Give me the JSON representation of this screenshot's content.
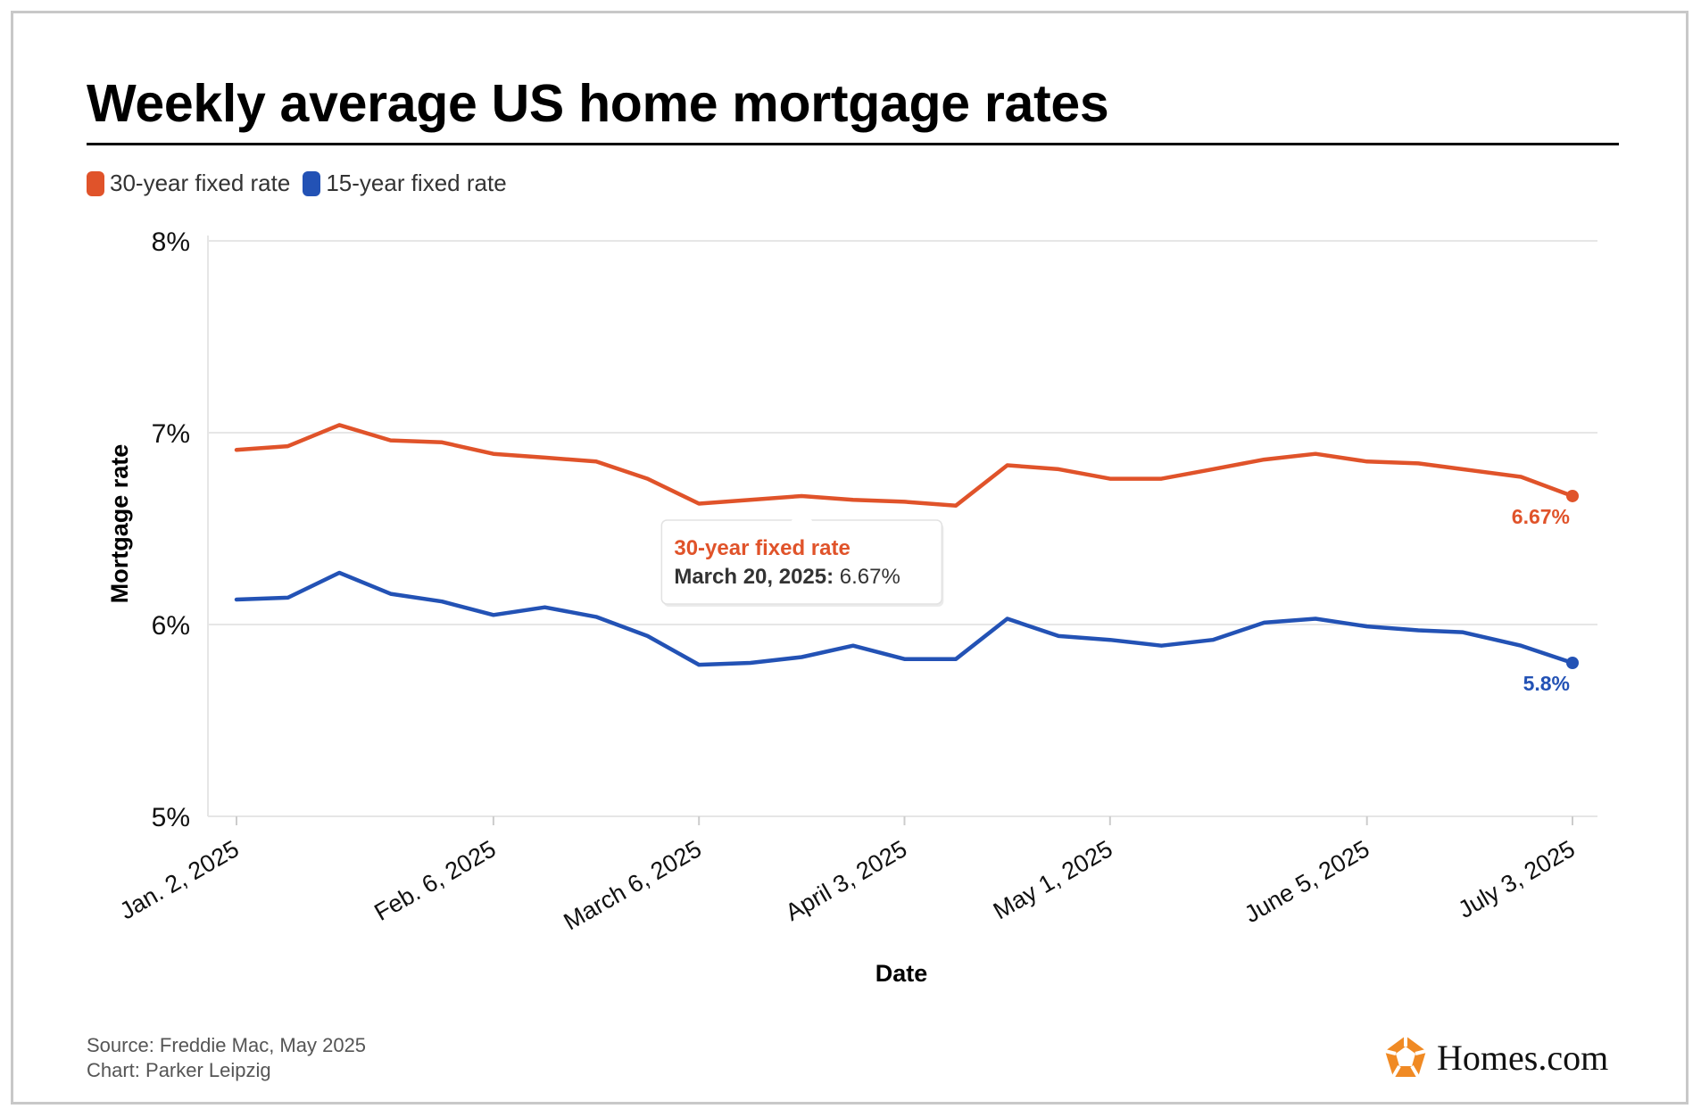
{
  "title": "Weekly average US home mortgage rates",
  "legend": [
    {
      "label": "30-year fixed rate",
      "color": "#e0532a"
    },
    {
      "label": "15-year fixed rate",
      "color": "#2352b5"
    }
  ],
  "footer": {
    "source": "Source: Freddie Mac, May 2025",
    "credit": "Chart: Parker Leipzig"
  },
  "brand": {
    "name": "Homes.com",
    "icon": "homes-logo-icon"
  },
  "tooltip": {
    "series": "30-year fixed rate",
    "date_label": "March 20, 2025:",
    "value_label": "6.67%"
  },
  "chart_data": {
    "type": "line",
    "xlabel": "Date",
    "ylabel": "Mortgage rate",
    "ylim": [
      5,
      8
    ],
    "yticks": [
      "5%",
      "6%",
      "7%",
      "8%"
    ],
    "grid": true,
    "legend_position": "top-left",
    "x": [
      "2025-01-02",
      "2025-01-09",
      "2025-01-16",
      "2025-01-23",
      "2025-01-30",
      "2025-02-06",
      "2025-02-13",
      "2025-02-20",
      "2025-02-27",
      "2025-03-06",
      "2025-03-13",
      "2025-03-20",
      "2025-03-27",
      "2025-04-03",
      "2025-04-10",
      "2025-04-17",
      "2025-04-24",
      "2025-05-01",
      "2025-05-08",
      "2025-05-15",
      "2025-05-22",
      "2025-05-29",
      "2025-06-05",
      "2025-06-12",
      "2025-06-18",
      "2025-06-26",
      "2025-07-03"
    ],
    "xtick_labels": [
      {
        "date": "2025-01-02",
        "label": "Jan. 2, 2025"
      },
      {
        "date": "2025-02-06",
        "label": "Feb. 6, 2025"
      },
      {
        "date": "2025-03-06",
        "label": "March 6, 2025"
      },
      {
        "date": "2025-04-03",
        "label": "April 3, 2025"
      },
      {
        "date": "2025-05-01",
        "label": "May 1, 2025"
      },
      {
        "date": "2025-06-05",
        "label": "June 5, 2025"
      },
      {
        "date": "2025-07-03",
        "label": "July 3, 2025"
      }
    ],
    "series": [
      {
        "name": "30-year fixed rate",
        "color": "#e0532a",
        "end_label": "6.67%",
        "values": [
          6.91,
          6.93,
          7.04,
          6.96,
          6.95,
          6.89,
          6.87,
          6.85,
          6.76,
          6.63,
          6.65,
          6.67,
          6.65,
          6.64,
          6.62,
          6.83,
          6.81,
          6.76,
          6.76,
          6.81,
          6.86,
          6.89,
          6.85,
          6.84,
          6.81,
          6.77,
          6.67
        ]
      },
      {
        "name": "15-year fixed rate",
        "color": "#2352b5",
        "end_label": "5.8%",
        "values": [
          6.13,
          6.14,
          6.27,
          6.16,
          6.12,
          6.05,
          6.09,
          6.04,
          5.94,
          5.79,
          5.8,
          5.83,
          5.89,
          5.82,
          5.82,
          6.03,
          5.94,
          5.92,
          5.89,
          5.92,
          6.01,
          6.03,
          5.99,
          5.97,
          5.96,
          5.89,
          5.8
        ]
      }
    ]
  }
}
